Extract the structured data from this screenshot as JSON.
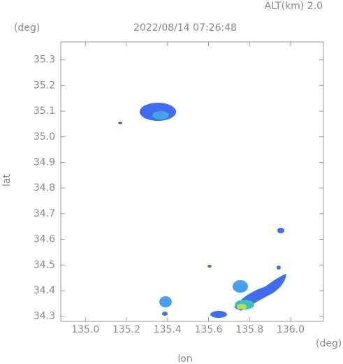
{
  "chart_data": {
    "type": "map",
    "title": "2022/08/14 07:26:48",
    "subtitle": "ALT(km) 2.0",
    "x_label": "lon",
    "y_label": "lat",
    "x_unit": "(deg)",
    "y_unit": "(deg)",
    "xlim": [
      134.88,
      136.16
    ],
    "ylim": [
      34.28,
      35.37
    ],
    "xticks": [
      {
        "value": 135,
        "label": "135.0"
      },
      135.2,
      135.4,
      135.6,
      135.8,
      {
        "value": 136,
        "label": "136.0"
      }
    ],
    "yticks": [
      34.3,
      34.4,
      34.5,
      34.6,
      34.7,
      34.8,
      34.9,
      {
        "value": 35,
        "label": "35.0"
      },
      35.1,
      35.2,
      35.3
    ]
  }
}
